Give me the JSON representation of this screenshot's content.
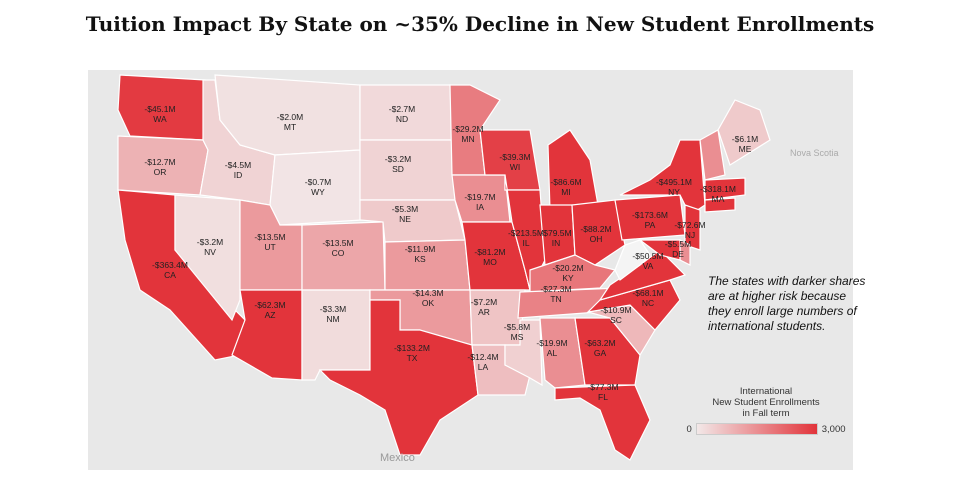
{
  "title": "Tuition Impact By State on ~35% Decline in New Student Enrollments",
  "note": "The states with darker shares are at higher risk because they enroll large numbers of international students.",
  "basemap_labels": {
    "mexico": "Mexico",
    "nova_scotia": "Nova Scotia"
  },
  "legend": {
    "title_lines": [
      "International",
      "New Student Enrollments",
      "in Fall term"
    ],
    "min_label": "0",
    "max_label": "3,000",
    "min": 0,
    "max": 3000,
    "color_low": "#f2e8e8",
    "color_high": "#e2343b"
  },
  "chart_data": {
    "type": "choropleth",
    "value_note": "estimated enrollment shade (0-3,000)",
    "states": [
      {
        "abbr": "WA",
        "impact": "-$45.1M",
        "shade": 2900
      },
      {
        "abbr": "OR",
        "impact": "-$12.7M",
        "shade": 900
      },
      {
        "abbr": "CA",
        "impact": "-$363.4M",
        "shade": 3000
      },
      {
        "abbr": "NV",
        "impact": "-$3.2M",
        "shade": 150
      },
      {
        "abbr": "ID",
        "impact": "-$4.5M",
        "shade": 350
      },
      {
        "abbr": "MT",
        "impact": "-$2.0M",
        "shade": 120
      },
      {
        "abbr": "WY",
        "impact": "-$0.7M",
        "shade": 60
      },
      {
        "abbr": "UT",
        "impact": "-$13.5M",
        "shade": 1300
      },
      {
        "abbr": "AZ",
        "impact": "-$62.3M",
        "shade": 3000
      },
      {
        "abbr": "CO",
        "impact": "-$13.5M",
        "shade": 1100
      },
      {
        "abbr": "NM",
        "impact": "-$3.3M",
        "shade": 200
      },
      {
        "abbr": "ND",
        "impact": "-$2.7M",
        "shade": 250
      },
      {
        "abbr": "SD",
        "impact": "-$3.2M",
        "shade": 350
      },
      {
        "abbr": "NE",
        "impact": "-$5.3M",
        "shade": 500
      },
      {
        "abbr": "KS",
        "impact": "-$11.9M",
        "shade": 1300
      },
      {
        "abbr": "OK",
        "impact": "-$14.3M",
        "shade": 1300
      },
      {
        "abbr": "TX",
        "impact": "-$133.2M",
        "shade": 3000
      },
      {
        "abbr": "MN",
        "impact": "-$29.2M",
        "shade": 1800
      },
      {
        "abbr": "IA",
        "impact": "-$19.7M",
        "shade": 1500
      },
      {
        "abbr": "MO",
        "impact": "-$81.2M",
        "shade": 3000
      },
      {
        "abbr": "AR",
        "impact": "-$7.2M",
        "shade": 600
      },
      {
        "abbr": "LA",
        "impact": "-$12.4M",
        "shade": 700
      },
      {
        "abbr": "MS",
        "impact": "-$5.8M",
        "shade": 400
      },
      {
        "abbr": "WI",
        "impact": "-$39.3M",
        "shade": 2800
      },
      {
        "abbr": "IL",
        "impact": "-$213.5M",
        "shade": 3000
      },
      {
        "abbr": "MI",
        "impact": "-$86.6M",
        "shade": 3000
      },
      {
        "abbr": "IN",
        "impact": "-$79.5M",
        "shade": 3000
      },
      {
        "abbr": "OH",
        "impact": "-$88.2M",
        "shade": 3000
      },
      {
        "abbr": "KY",
        "impact": "-$20.2M",
        "shade": 1900
      },
      {
        "abbr": "TN",
        "impact": "-$27.3M",
        "shade": 1700
      },
      {
        "abbr": "AL",
        "impact": "-$19.9M",
        "shade": 1500
      },
      {
        "abbr": "GA",
        "impact": "-$63.2M",
        "shade": 3000
      },
      {
        "abbr": "FL",
        "impact": "-$77.3M",
        "shade": 3000
      },
      {
        "abbr": "SC",
        "impact": "-$10.9M",
        "shade": 800
      },
      {
        "abbr": "NC",
        "impact": "-$68.1M",
        "shade": 3000
      },
      {
        "abbr": "VA",
        "impact": "-$50.5M",
        "shade": 3000
      },
      {
        "abbr": "WV",
        "impact": "",
        "shade": 0
      },
      {
        "abbr": "PA",
        "impact": "-$173.6M",
        "shade": 3000
      },
      {
        "abbr": "NY",
        "impact": "-$495.1M",
        "shade": 3000
      },
      {
        "abbr": "NJ",
        "impact": "-$72.6M",
        "shade": 3000
      },
      {
        "abbr": "DE",
        "impact": "-$5.5M",
        "shade": 1500
      },
      {
        "abbr": "MD",
        "impact": "",
        "shade": 3000
      },
      {
        "abbr": "NE-N",
        "impact": "",
        "shade": 1500
      },
      {
        "abbr": "MA",
        "impact": "-$318.1M",
        "shade": 3000
      },
      {
        "abbr": "CT",
        "impact": "",
        "shade": 3000
      },
      {
        "abbr": "ME",
        "impact": "-$6.1M",
        "shade": 500
      }
    ]
  }
}
